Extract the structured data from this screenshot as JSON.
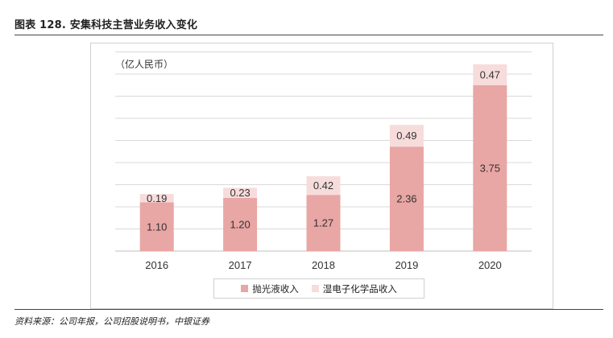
{
  "figure_title": "图表 128. 安集科技主营业务收入变化",
  "source_note": "资料来源：公司年报，公司招股说明书，中银证券",
  "colors": {
    "polishing": "#e8a6a4",
    "wet_chem": "#f7dcdc",
    "grid": "#d9d9d9",
    "text": "#333333"
  },
  "chart_data": {
    "type": "bar",
    "stacked": true,
    "title": "",
    "unit_label": "（亿人民币）",
    "xlabel": "",
    "ylabel": "",
    "ylim": [
      0,
      4.5
    ],
    "grid": true,
    "legend_position": "bottom",
    "categories": [
      "2016",
      "2017",
      "2018",
      "2019",
      "2020"
    ],
    "series": [
      {
        "name": "抛光液收入",
        "values": [
          1.1,
          1.2,
          1.27,
          2.36,
          3.75
        ],
        "labels": [
          "1.10",
          "1.20",
          "1.27",
          "2.36",
          "3.75"
        ]
      },
      {
        "name": "湿电子化学品收入",
        "values": [
          0.19,
          0.23,
          0.42,
          0.49,
          0.47
        ],
        "labels": [
          "0.19",
          "0.23",
          "0.42",
          "0.49",
          "0.47"
        ]
      }
    ]
  }
}
